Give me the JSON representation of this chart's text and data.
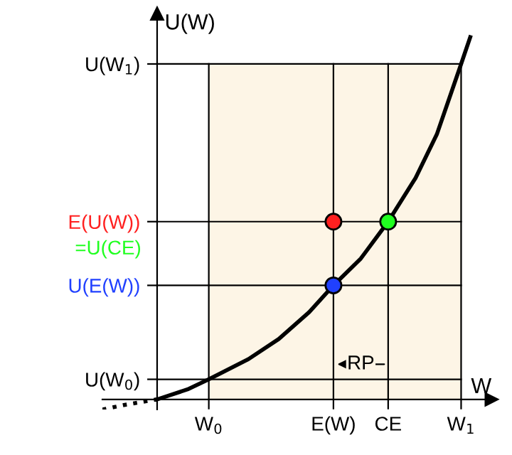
{
  "chart_data": {
    "type": "line",
    "xlabel": "W",
    "ylabel": "U(W)",
    "xlim": [
      -0.18,
      1.1
    ],
    "ylim": [
      -0.03,
      1.15
    ],
    "xticks": [
      {
        "value": 0.17,
        "label": "W$_{0}$"
      },
      {
        "value": 0.58,
        "label": "E(W)"
      },
      {
        "value": 0.76,
        "label": "CE"
      },
      {
        "value": 1.0,
        "label": "W$_{1}$"
      }
    ],
    "yticks": [
      {
        "value": 0.06,
        "label": "U(W$_{0}$)"
      },
      {
        "value": 0.34,
        "label": "U(E(W))"
      },
      {
        "value": 0.53,
        "label": "E(U(W))"
      },
      {
        "value": 1.0,
        "label": "U(W$_{1}$)"
      }
    ],
    "series": [
      {
        "color": "#000000",
        "line_style": "dotted",
        "x": [
          -0.18,
          -0.1,
          0
        ],
        "values": [
          -0.03,
          -0.015,
          0
        ]
      },
      {
        "color": "#000000",
        "line_style": "solid",
        "x": [
          0,
          0.1,
          0.17,
          0.3,
          0.4,
          0.5,
          0.58,
          0.67,
          0.76,
          0.85,
          0.92,
          1.0,
          1.03
        ],
        "values": [
          0,
          0.03,
          0.06,
          0.12,
          0.18,
          0.26,
          0.34,
          0.42,
          0.53,
          0.66,
          0.79,
          1.0,
          1.08
        ]
      },
      {
        "type": "scatter",
        "marker": "circle",
        "color": "#ff2020",
        "x": [
          0.58
        ],
        "values": [
          0.53
        ]
      },
      {
        "type": "scatter",
        "marker": "circle",
        "color": "#20ff20",
        "x": [
          0.76
        ],
        "values": [
          0.53
        ]
      },
      {
        "type": "scatter",
        "marker": "circle",
        "color": "#2040ff",
        "x": [
          0.58
        ],
        "values": [
          0.34
        ]
      }
    ],
    "ref_lines": [
      {
        "axis": "x",
        "value": 0.17
      },
      {
        "axis": "x",
        "value": 0.58
      },
      {
        "axis": "x",
        "value": 0.76
      },
      {
        "axis": "x",
        "value": 1.0
      },
      {
        "axis": "y",
        "value": 0.06
      },
      {
        "axis": "y",
        "value": 0.34
      },
      {
        "axis": "y",
        "value": 0.53
      },
      {
        "axis": "y",
        "value": 1.0
      }
    ],
    "bands": [
      {
        "axis": "x",
        "from": 0.17,
        "to": 1.0,
        "color": "#fdf5e6"
      }
    ],
    "annotations": [
      {
        "text": "=U(CE)",
        "x": 0,
        "y": 0.53
      },
      {
        "text": "RP",
        "x": 0.67,
        "y": 0.105
      }
    ],
    "grid": false,
    "legend": false
  }
}
